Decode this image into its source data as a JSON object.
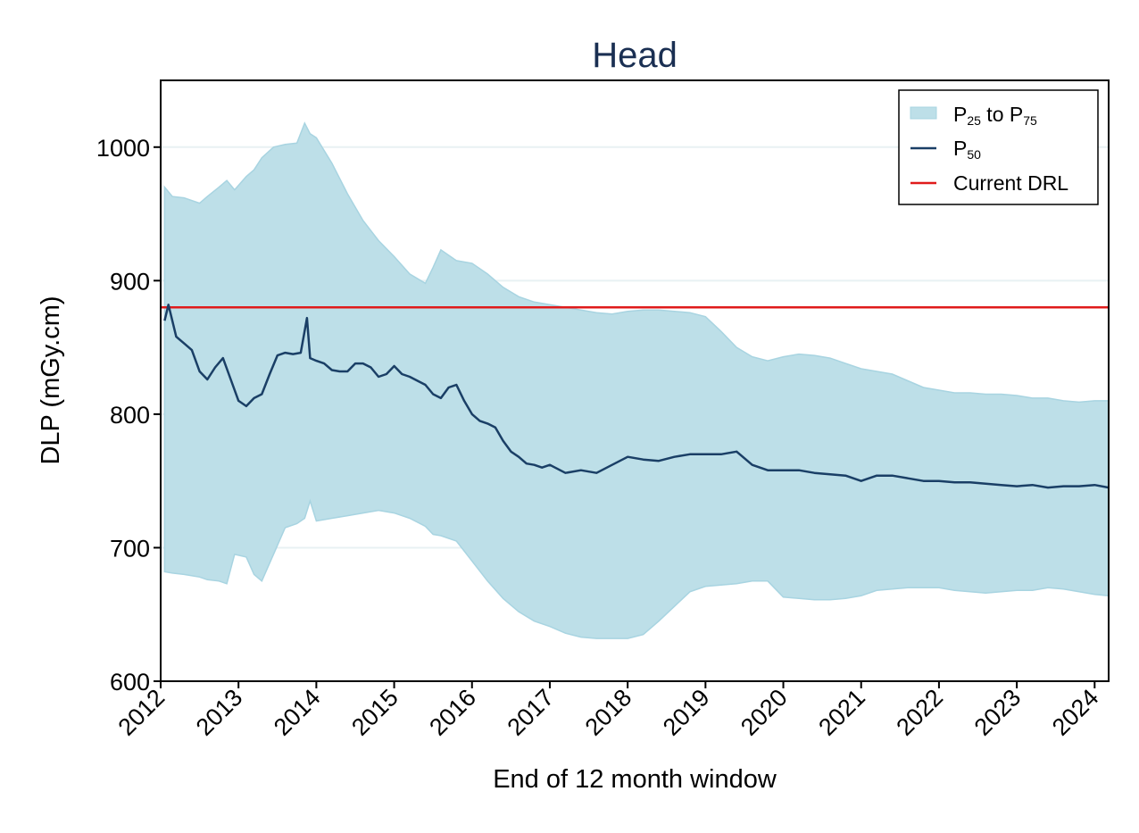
{
  "chart_data": {
    "type": "line",
    "title": "Head",
    "xlabel": "End of 12 month window",
    "ylabel": "DLP (mGy.cm)",
    "xlim": [
      2012.0,
      2024.18
    ],
    "ylim": [
      600,
      1050
    ],
    "x_ticks": [
      "2012",
      "2013",
      "2014",
      "2015",
      "2016",
      "2017",
      "2018",
      "2019",
      "2020",
      "2021",
      "2022",
      "2023",
      "2024"
    ],
    "y_ticks": [
      "600",
      "700",
      "800",
      "900",
      "1000"
    ],
    "grid": true,
    "legend": "top-right",
    "legend_entries": {
      "band": {
        "p": "P",
        "sub_a": "25",
        "mid": " to P",
        "sub_b": "75"
      },
      "median": {
        "p": "P",
        "sub": "50"
      },
      "drl": "Current DRL"
    },
    "colors": {
      "band_fill": "#bddfe8",
      "band_edge": "#a8d4e1",
      "median": "#1a3f66",
      "drl": "#e01b1b",
      "grid": "#e8f1f3",
      "title": "#1a2f52"
    },
    "series": [
      {
        "name": "P25 to P75",
        "kind": "band",
        "x": [
          2012.05,
          2012.15,
          2012.3,
          2012.5,
          2012.6,
          2012.75,
          2012.85,
          2012.95,
          2013.1,
          2013.2,
          2013.3,
          2013.45,
          2013.6,
          2013.75,
          2013.85,
          2013.92,
          2014.0,
          2014.2,
          2014.4,
          2014.6,
          2014.8,
          2015.0,
          2015.2,
          2015.4,
          2015.5,
          2015.6,
          2015.8,
          2016.0,
          2016.2,
          2016.4,
          2016.6,
          2016.8,
          2017.0,
          2017.2,
          2017.4,
          2017.6,
          2017.8,
          2018.0,
          2018.2,
          2018.4,
          2018.6,
          2018.8,
          2019.0,
          2019.2,
          2019.4,
          2019.6,
          2019.8,
          2020.0,
          2020.2,
          2020.4,
          2020.6,
          2020.8,
          2021.0,
          2021.2,
          2021.4,
          2021.6,
          2021.8,
          2022.0,
          2022.2,
          2022.4,
          2022.6,
          2022.8,
          2023.0,
          2023.2,
          2023.4,
          2023.6,
          2023.8,
          2024.0,
          2024.18
        ],
        "upper": [
          970,
          963,
          962,
          958,
          963,
          970,
          975,
          968,
          978,
          983,
          992,
          1000,
          1002,
          1003,
          1018,
          1010,
          1007,
          988,
          965,
          945,
          930,
          918,
          905,
          898,
          910,
          923,
          915,
          913,
          905,
          895,
          888,
          884,
          882,
          880,
          878,
          876,
          875,
          877,
          878,
          878,
          877,
          876,
          873,
          862,
          850,
          843,
          840,
          843,
          845,
          844,
          842,
          838,
          834,
          832,
          830,
          825,
          820,
          818,
          816,
          816,
          815,
          815,
          814,
          812,
          812,
          810,
          809,
          810,
          810
        ],
        "lower": [
          682,
          681,
          680,
          678,
          676,
          675,
          673,
          695,
          693,
          680,
          675,
          695,
          715,
          718,
          722,
          735,
          720,
          722,
          724,
          726,
          728,
          726,
          722,
          716,
          710,
          709,
          705,
          690,
          675,
          662,
          652,
          645,
          641,
          636,
          633,
          632,
          632,
          632,
          635,
          645,
          656,
          667,
          671,
          672,
          673,
          675,
          675,
          663,
          662,
          661,
          661,
          662,
          664,
          668,
          669,
          670,
          670,
          670,
          668,
          667,
          666,
          667,
          668,
          668,
          670,
          669,
          667,
          665,
          664
        ]
      },
      {
        "name": "P50",
        "kind": "line",
        "x": [
          2012.05,
          2012.1,
          2012.2,
          2012.3,
          2012.4,
          2012.5,
          2012.6,
          2012.7,
          2012.8,
          2012.9,
          2013.0,
          2013.1,
          2013.2,
          2013.3,
          2013.4,
          2013.5,
          2013.6,
          2013.7,
          2013.8,
          2013.88,
          2013.92,
          2014.0,
          2014.1,
          2014.2,
          2014.3,
          2014.4,
          2014.5,
          2014.6,
          2014.7,
          2014.8,
          2014.9,
          2015.0,
          2015.1,
          2015.2,
          2015.3,
          2015.4,
          2015.5,
          2015.6,
          2015.7,
          2015.8,
          2015.9,
          2016.0,
          2016.1,
          2016.2,
          2016.3,
          2016.4,
          2016.5,
          2016.6,
          2016.7,
          2016.8,
          2016.9,
          2017.0,
          2017.2,
          2017.4,
          2017.6,
          2017.8,
          2018.0,
          2018.2,
          2018.4,
          2018.6,
          2018.8,
          2019.0,
          2019.2,
          2019.4,
          2019.6,
          2019.8,
          2020.0,
          2020.2,
          2020.4,
          2020.6,
          2020.8,
          2021.0,
          2021.2,
          2021.4,
          2021.6,
          2021.8,
          2022.0,
          2022.2,
          2022.4,
          2022.6,
          2022.8,
          2023.0,
          2023.2,
          2023.4,
          2023.6,
          2023.8,
          2024.0,
          2024.18
        ],
        "y": [
          870,
          882,
          858,
          853,
          848,
          832,
          826,
          835,
          842,
          826,
          810,
          806,
          812,
          815,
          830,
          844,
          846,
          845,
          846,
          872,
          842,
          840,
          838,
          833,
          832,
          832,
          838,
          838,
          835,
          828,
          830,
          836,
          830,
          828,
          825,
          822,
          815,
          812,
          820,
          822,
          810,
          800,
          795,
          793,
          790,
          780,
          772,
          768,
          763,
          762,
          760,
          762,
          756,
          758,
          756,
          762,
          768,
          766,
          765,
          768,
          770,
          770,
          770,
          772,
          762,
          758,
          758,
          758,
          756,
          755,
          754,
          750,
          754,
          754,
          752,
          750,
          750,
          749,
          749,
          748,
          747,
          746,
          747,
          745,
          746,
          746,
          747,
          745
        ]
      },
      {
        "name": "Current DRL",
        "kind": "hline",
        "y": 880
      }
    ]
  }
}
